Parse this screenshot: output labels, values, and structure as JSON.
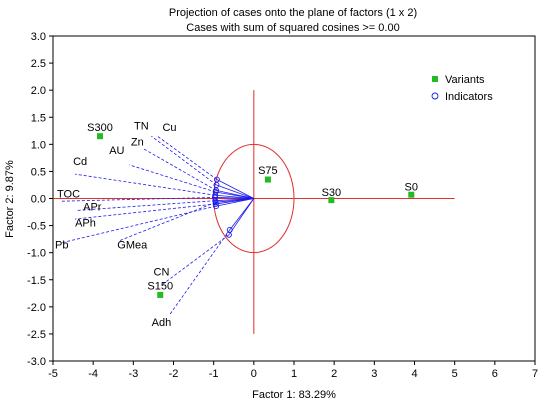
{
  "chart_data": {
    "type": "scatter",
    "title": "Projection of cases onto the plane of factors (1 x 2)",
    "subtitle": "Cases with sum of squared cosines >= 0.00",
    "xlabel": "Factor 1: 83.29%",
    "ylabel": "Factor 2: 9.87%",
    "xlim": [
      -5,
      7
    ],
    "ylim": [
      -3.0,
      3.0
    ],
    "xticks": [
      "-5",
      "-4",
      "-3",
      "-2",
      "-1",
      "0",
      "1",
      "2",
      "3",
      "4",
      "5",
      "6",
      "7"
    ],
    "yticks": [
      "-3.0",
      "-2.5",
      "-2.0",
      "-1.5",
      "-1.0",
      "-0.5",
      "0.0",
      "0.5",
      "1.0",
      "1.5",
      "2.0",
      "2.5",
      "3.0"
    ],
    "legend_position": "top-right",
    "reference_lines": {
      "x_from": -5,
      "x_to": 5,
      "y_from": -2.5,
      "y_to": 2.0
    },
    "circle": {
      "center": [
        0,
        0
      ],
      "radius": 1.0
    },
    "series": [
      {
        "name": "Variants",
        "marker": "square",
        "color": "#22bb22",
        "points": [
          {
            "label": "S0",
            "x": 3.92,
            "y": 0.07
          },
          {
            "label": "S30",
            "x": 1.93,
            "y": -0.03
          },
          {
            "label": "S75",
            "x": 0.35,
            "y": 0.35
          },
          {
            "label": "S150",
            "x": -2.33,
            "y": -1.78
          },
          {
            "label": "S300",
            "x": -3.83,
            "y": 1.15
          }
        ]
      },
      {
        "name": "Indicators",
        "marker": "circle",
        "color": "#1a1aee",
        "points": [
          {
            "label": "Cu",
            "x": -0.92,
            "y": 0.35
          },
          {
            "label": "TN",
            "x": -0.93,
            "y": 0.25
          },
          {
            "label": "Zn",
            "x": -0.94,
            "y": 0.15
          },
          {
            "label": "AU",
            "x": -0.95,
            "y": 0.12
          },
          {
            "label": "Cd",
            "x": -0.96,
            "y": 0.06
          },
          {
            "label": "TOC",
            "x": -0.97,
            "y": 0.02
          },
          {
            "label": "APr",
            "x": -0.96,
            "y": -0.04
          },
          {
            "label": "APh",
            "x": -0.95,
            "y": -0.1
          },
          {
            "label": "Pb",
            "x": -0.94,
            "y": -0.14
          },
          {
            "label": "GMea",
            "x": -0.95,
            "y": -0.07
          },
          {
            "label": "CN",
            "x": -0.62,
            "y": -0.67
          },
          {
            "label": "Adh",
            "x": -0.6,
            "y": -0.58
          }
        ],
        "vector_ends": [
          {
            "label": "Cu",
            "x": -2.4,
            "y": 1.15
          },
          {
            "label": "TN",
            "x": -2.55,
            "y": 1.15
          },
          {
            "label": "Zn",
            "x": -2.75,
            "y": 0.92
          },
          {
            "label": "AU",
            "x": -3.1,
            "y": 0.62
          },
          {
            "label": "Cd",
            "x": -4.45,
            "y": 0.45
          },
          {
            "label": "TOC",
            "x": -4.8,
            "y": -0.05
          },
          {
            "label": "APr",
            "x": -4.4,
            "y": -0.22
          },
          {
            "label": "APh",
            "x": -4.45,
            "y": -0.38
          },
          {
            "label": "Pb",
            "x": -4.8,
            "y": -0.82
          },
          {
            "label": "GMea",
            "x": -3.35,
            "y": -0.78
          },
          {
            "label": "CN",
            "x": -2.3,
            "y": -1.6
          },
          {
            "label": "Adh",
            "x": -2.1,
            "y": -2.15
          }
        ]
      }
    ]
  }
}
